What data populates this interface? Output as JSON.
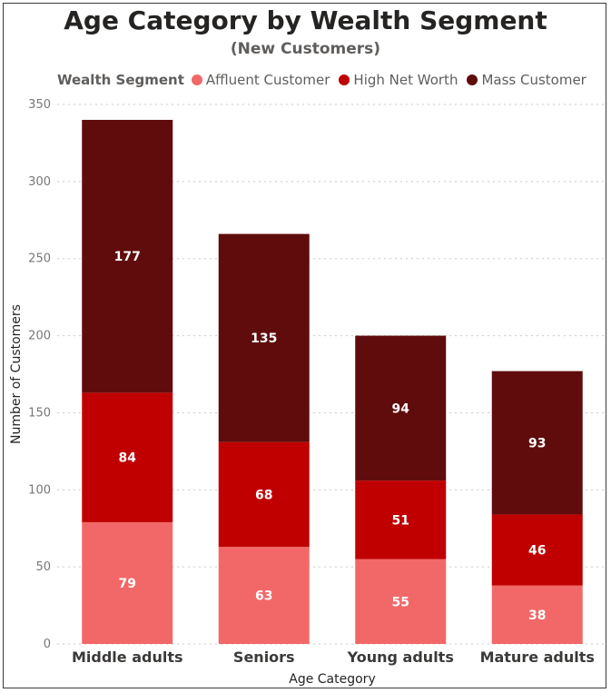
{
  "chart_data": {
    "type": "bar",
    "stacked": true,
    "title": "Age Category by Wealth Segment",
    "subtitle": "(New Customers)",
    "legend": {
      "title": "Wealth Segment",
      "placement": "top-left"
    },
    "categories": [
      "Middle adults",
      "Seniors",
      "Young adults",
      "Mature adults"
    ],
    "series": [
      {
        "name": "Affluent Customer",
        "color": "#f26868",
        "values": [
          79,
          63,
          55,
          38
        ]
      },
      {
        "name": "High Net Worth",
        "color": "#c00000",
        "values": [
          84,
          68,
          51,
          46
        ]
      },
      {
        "name": "Mass Customer",
        "color": "#600c0c",
        "values": [
          177,
          135,
          94,
          93
        ]
      }
    ],
    "xlabel": "Age Category",
    "ylabel": "Number of Customers",
    "ylim": [
      0,
      350
    ],
    "yticks": [
      0,
      50,
      100,
      150,
      200,
      250,
      300,
      350
    ],
    "grid": true
  }
}
